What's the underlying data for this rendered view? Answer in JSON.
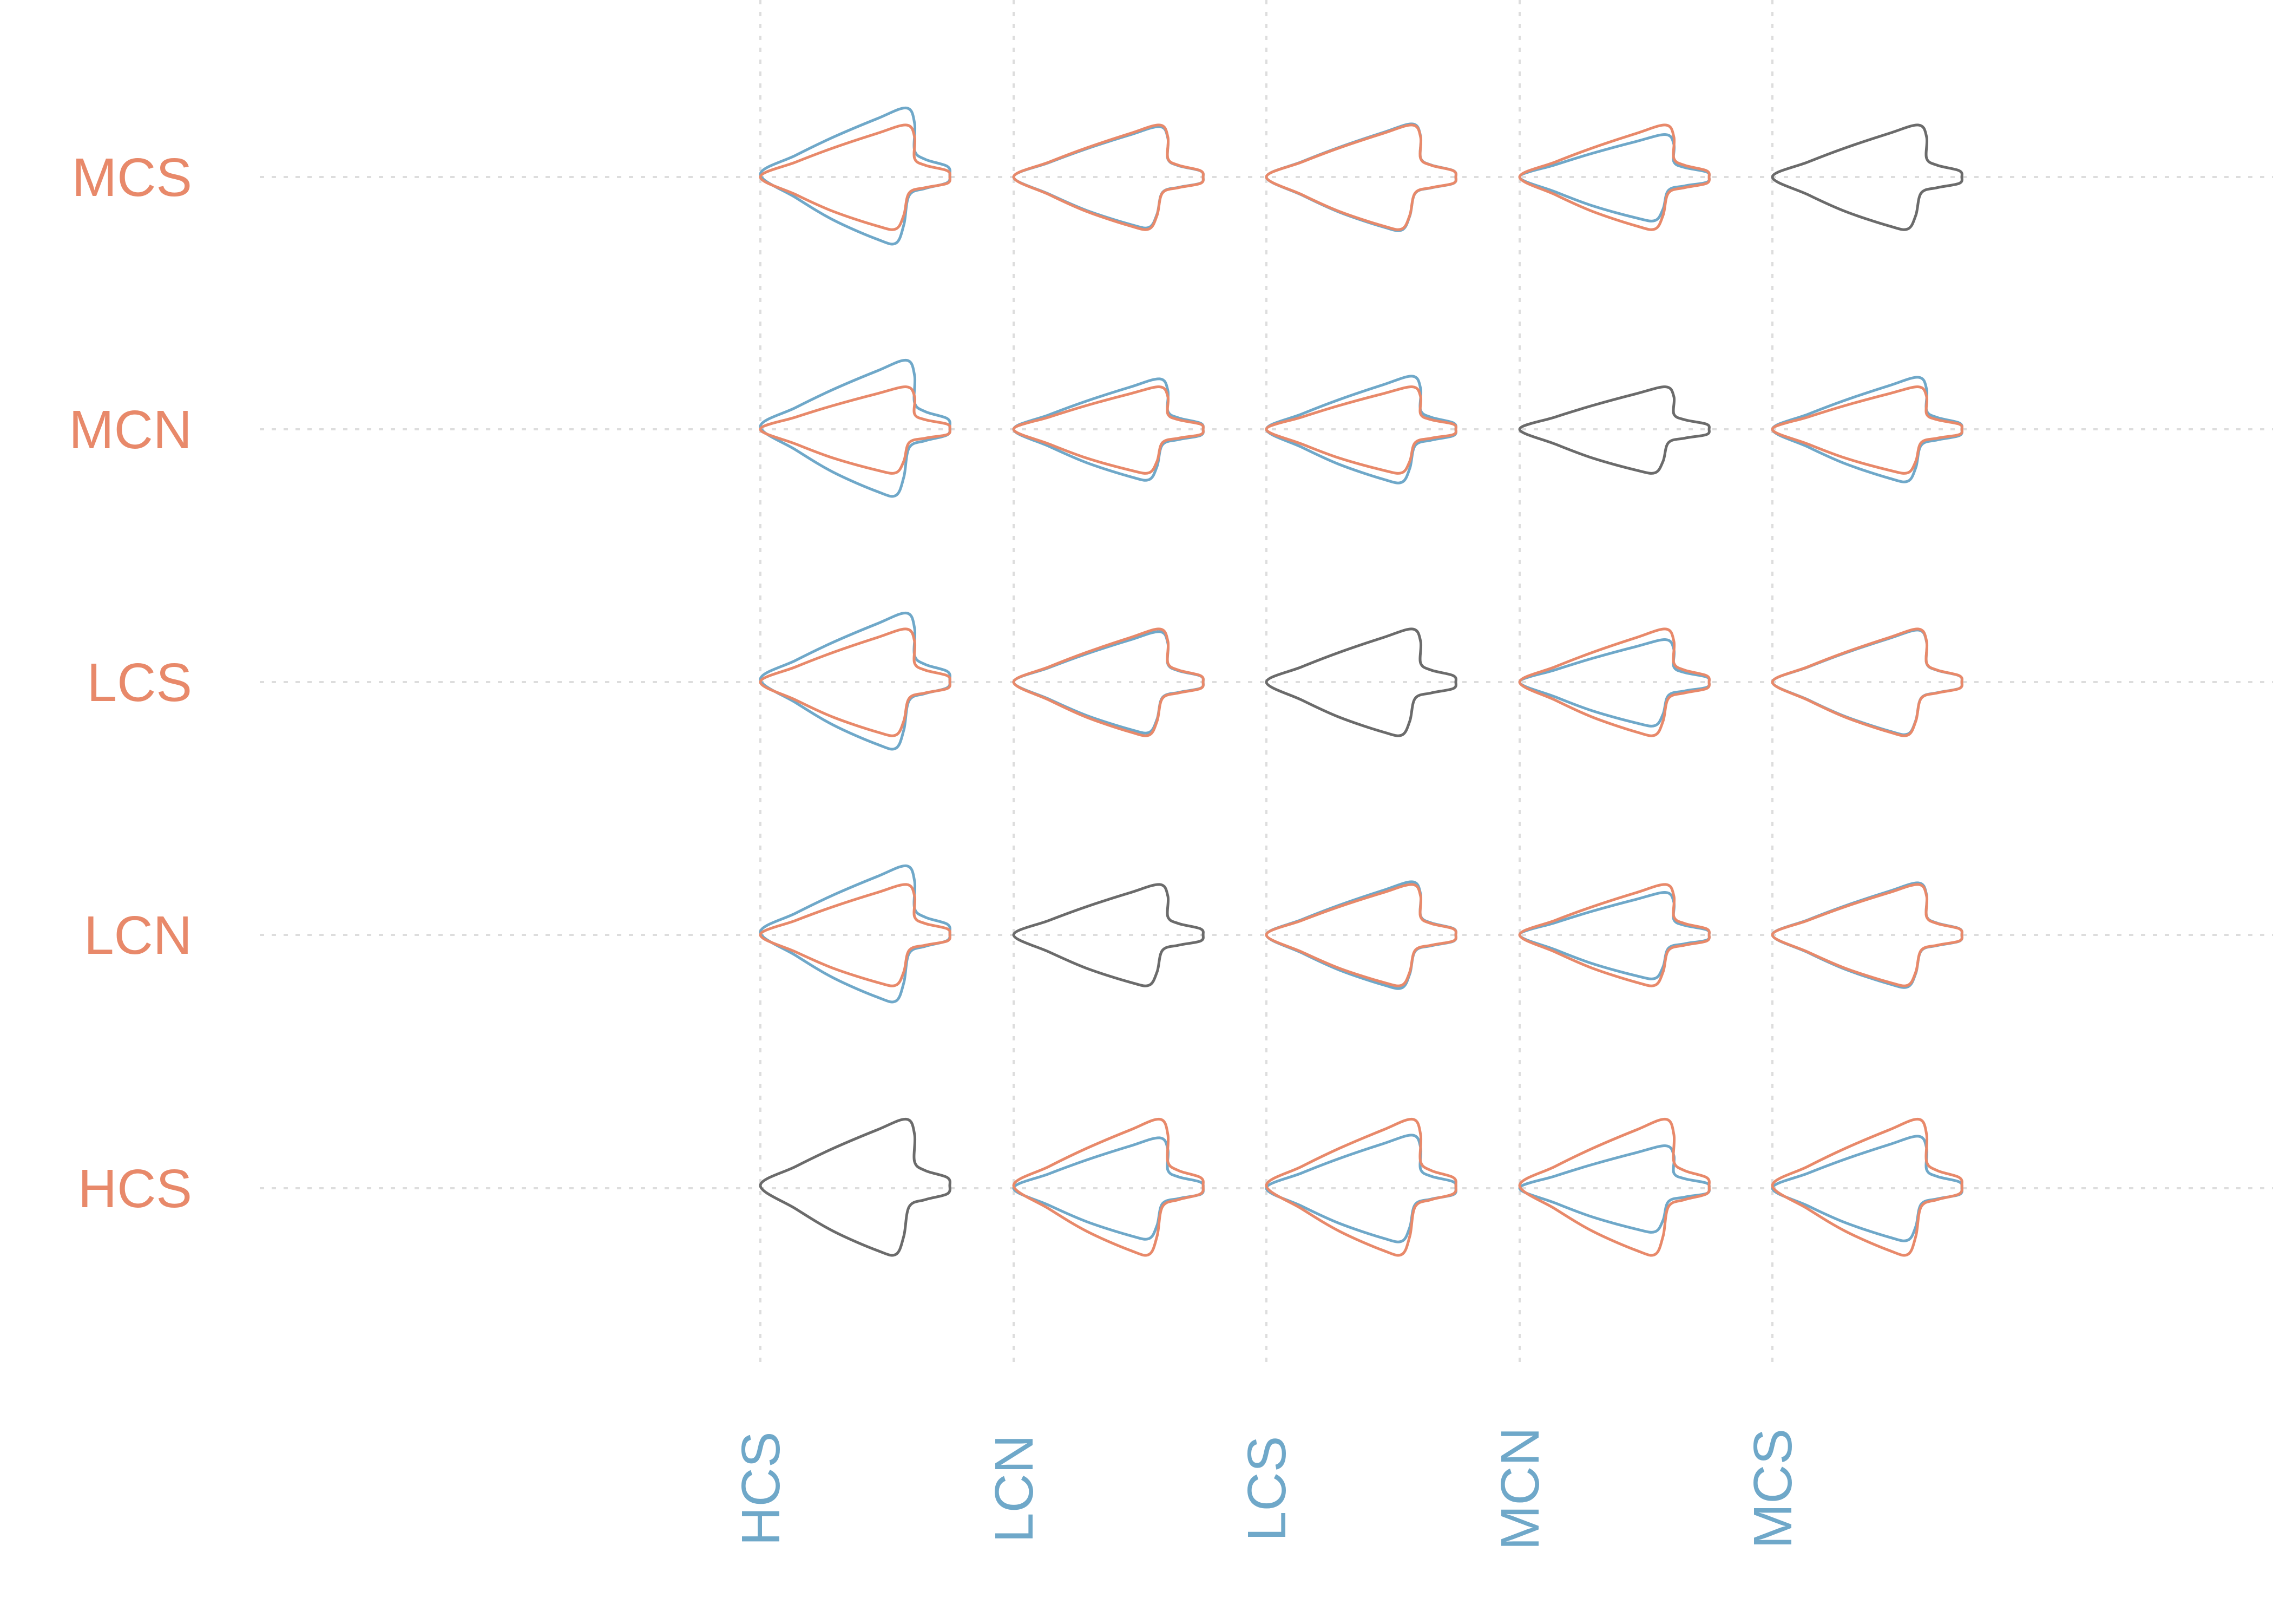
{
  "figure": {
    "row_labels": [
      "MCS",
      "MCN",
      "LCS",
      "LCN",
      "HCS"
    ],
    "column_labels": [
      "HCS",
      "LCN",
      "LCS",
      "MCN",
      "MCS"
    ],
    "colors": {
      "row": "#E8896A",
      "column": "#6FA8C9",
      "diagonal": "#6B6B6B",
      "grid": "#DDDDDD"
    },
    "grid": "dotted",
    "outline_icon": "arrowhead-outline"
  }
}
